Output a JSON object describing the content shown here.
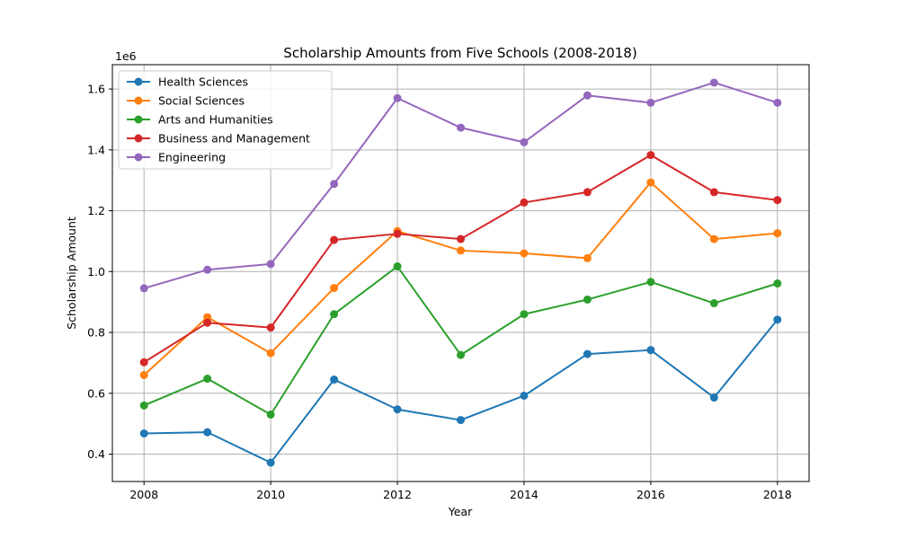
{
  "chart_data": {
    "type": "line",
    "title": "Scholarship Amounts from Five Schools (2008-2018)",
    "xlabel": "Year",
    "ylabel": "Scholarship Amount",
    "y_offset_label": "1e6",
    "x": [
      2008,
      2009,
      2010,
      2011,
      2012,
      2013,
      2014,
      2015,
      2016,
      2017,
      2018
    ],
    "xlim": [
      2007.5,
      2018.5
    ],
    "ylim": [
      310000,
      1680000
    ],
    "x_ticks": [
      2008,
      2010,
      2012,
      2014,
      2016,
      2018
    ],
    "x_tick_labels": [
      "2008",
      "2010",
      "2012",
      "2014",
      "2016",
      "2018"
    ],
    "y_ticks": [
      400000,
      600000,
      800000,
      1000000,
      1200000,
      1400000,
      1600000
    ],
    "y_tick_labels": [
      "0.4",
      "0.6",
      "0.8",
      "1.0",
      "1.2",
      "1.4",
      "1.6"
    ],
    "grid": true,
    "legend_position": "top-left",
    "series": [
      {
        "name": "Health Sciences",
        "color": "#1f77b4",
        "values": [
          468000,
          472000,
          372000,
          645000,
          547000,
          512000,
          592000,
          729000,
          742000,
          586000,
          842000
        ]
      },
      {
        "name": "Social Sciences",
        "color": "#ff7f0e",
        "values": [
          660000,
          850000,
          732000,
          946000,
          1133000,
          1069000,
          1060000,
          1044000,
          1293000,
          1107000,
          1126000
        ]
      },
      {
        "name": "Arts and Humanities",
        "color": "#2ca02c",
        "values": [
          560000,
          648000,
          530000,
          860000,
          1017000,
          726000,
          860000,
          908000,
          966000,
          896000,
          961000
        ]
      },
      {
        "name": "Business and Management",
        "color": "#d62728",
        "values": [
          702000,
          832000,
          816000,
          1104000,
          1124000,
          1107000,
          1227000,
          1261000,
          1383000,
          1261000,
          1235000
        ]
      },
      {
        "name": "Engineering",
        "color": "#9467bd",
        "values": [
          945000,
          1006000,
          1025000,
          1288000,
          1570000,
          1473000,
          1425000,
          1579000,
          1555000,
          1621000,
          1555000
        ]
      }
    ]
  }
}
